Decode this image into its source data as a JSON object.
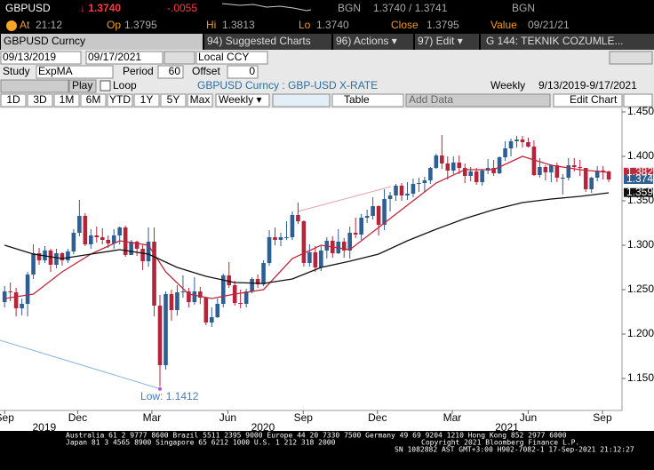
{
  "header": {
    "ticker": "GBPUSD",
    "last": "↓ 1.3740",
    "change": "-.0055",
    "bgn1": "BGN",
    "bid_ask": "1.3740 / 1.3741",
    "bgn2": "BGN",
    "at_label": "At",
    "at": "21:12",
    "op_label": "Op",
    "op": "1.3795",
    "hi_label": "Hi",
    "hi": "1.3813",
    "lo_label": "Lo",
    "lo": "1.3740",
    "close_label": "Close",
    "close": "1.3795",
    "value_label": "Value",
    "value": "09/21/21"
  },
  "toolbar": {
    "security": "GBPUSD Curncy",
    "suggested": "94) Suggested Charts",
    "actions": "96) Actions ▾",
    "edit": "97) Edit ▾",
    "page": "G 144: TEKNIK COZUMLE...",
    "start": "09/13/2019",
    "end": "09/17/2021",
    "currency": "Local CCY",
    "study_label": "Study",
    "study": "ExpMA",
    "period_label": "Period",
    "period": "60",
    "offset_label": "Offset",
    "offset": "0",
    "play": "Play",
    "loop": "Loop",
    "description": "GBPUSD Curncy : GBP-USD X-RATE",
    "frequency": "Weekly",
    "range": "9/13/2019-9/17/2021",
    "periods": [
      "1D",
      "3D",
      "1M",
      "6M",
      "YTD",
      "1Y",
      "5Y",
      "Max"
    ],
    "frequency_menu": "Weekly ▾",
    "table": "Table",
    "add_data": "Add Data",
    "edit_chart": "Edit Chart"
  },
  "chart_data": {
    "type": "candlestick",
    "up_color": "#2e5f93",
    "down_color": "#b5243a",
    "open": [
      1.236,
      1.248,
      1.247,
      1.229,
      1.234,
      1.267,
      1.291,
      1.283,
      1.294,
      1.278,
      1.291,
      1.283,
      1.293,
      1.314,
      1.333,
      1.301,
      1.311,
      1.309,
      1.306,
      1.302,
      1.311,
      1.32,
      1.289,
      1.304,
      1.296,
      1.282,
      1.304,
      1.232,
      1.165,
      1.245,
      1.227,
      1.247,
      1.248,
      1.236,
      1.248,
      1.241,
      1.213,
      1.219,
      1.234,
      1.266,
      1.255,
      1.235,
      1.234,
      1.248,
      1.262,
      1.256,
      1.28,
      1.309,
      1.306,
      1.309,
      1.309,
      1.334,
      1.327,
      1.28,
      1.292,
      1.275,
      1.294,
      1.305,
      1.291,
      1.304,
      1.294,
      1.314,
      1.312,
      1.331,
      1.333,
      1.344,
      1.323,
      1.352,
      1.356,
      1.367,
      1.356,
      1.358,
      1.369,
      1.37,
      1.373,
      1.387,
      1.401,
      1.392,
      1.384,
      1.393,
      1.387,
      1.378,
      1.383,
      1.371,
      1.384,
      1.387,
      1.381,
      1.399,
      1.409,
      1.417,
      1.419,
      1.416,
      1.411,
      1.379,
      1.388,
      1.382,
      1.39,
      1.376,
      1.376,
      1.39,
      1.388,
      1.387,
      1.363,
      1.376,
      1.384,
      1.383
    ],
    "high": [
      1.254,
      1.258,
      1.252,
      1.24,
      1.27,
      1.301,
      1.297,
      1.299,
      1.296,
      1.296,
      1.292,
      1.296,
      1.318,
      1.351,
      1.336,
      1.318,
      1.321,
      1.319,
      1.311,
      1.318,
      1.321,
      1.322,
      1.306,
      1.305,
      1.3,
      1.32,
      1.32,
      1.244,
      1.248,
      1.25,
      1.255,
      1.266,
      1.252,
      1.264,
      1.253,
      1.241,
      1.23,
      1.24,
      1.268,
      1.281,
      1.26,
      1.25,
      1.251,
      1.264,
      1.267,
      1.283,
      1.317,
      1.32,
      1.314,
      1.327,
      1.338,
      1.348,
      1.328,
      1.301,
      1.299,
      1.299,
      1.309,
      1.31,
      1.318,
      1.308,
      1.321,
      1.331,
      1.335,
      1.34,
      1.354,
      1.345,
      1.363,
      1.36,
      1.369,
      1.37,
      1.371,
      1.375,
      1.376,
      1.377,
      1.388,
      1.403,
      1.424,
      1.4,
      1.4,
      1.401,
      1.392,
      1.388,
      1.387,
      1.386,
      1.397,
      1.396,
      1.4,
      1.417,
      1.42,
      1.423,
      1.423,
      1.421,
      1.418,
      1.398,
      1.39,
      1.391,
      1.393,
      1.38,
      1.398,
      1.398,
      1.396,
      1.387,
      1.377,
      1.389,
      1.389,
      1.384
    ],
    "low": [
      1.23,
      1.237,
      1.22,
      1.221,
      1.22,
      1.262,
      1.278,
      1.28,
      1.27,
      1.274,
      1.277,
      1.28,
      1.29,
      1.31,
      1.299,
      1.296,
      1.303,
      1.301,
      1.297,
      1.296,
      1.301,
      1.287,
      1.289,
      1.288,
      1.272,
      1.276,
      1.22,
      1.1412,
      1.16,
      1.215,
      1.221,
      1.241,
      1.23,
      1.233,
      1.234,
      1.21,
      1.208,
      1.218,
      1.23,
      1.252,
      1.232,
      1.229,
      1.23,
      1.246,
      1.252,
      1.254,
      1.277,
      1.3,
      1.299,
      1.306,
      1.306,
      1.324,
      1.276,
      1.276,
      1.27,
      1.271,
      1.285,
      1.286,
      1.29,
      1.286,
      1.285,
      1.308,
      1.306,
      1.325,
      1.329,
      1.311,
      1.317,
      1.338,
      1.35,
      1.35,
      1.351,
      1.354,
      1.36,
      1.36,
      1.369,
      1.386,
      1.386,
      1.374,
      1.38,
      1.38,
      1.37,
      1.372,
      1.368,
      1.367,
      1.38,
      1.378,
      1.38,
      1.395,
      1.4,
      1.41,
      1.41,
      1.41,
      1.378,
      1.376,
      1.373,
      1.371,
      1.371,
      1.357,
      1.373,
      1.383,
      1.378,
      1.36,
      1.359,
      1.372,
      1.374,
      1.371
    ],
    "close": [
      1.248,
      1.247,
      1.229,
      1.234,
      1.267,
      1.291,
      1.283,
      1.294,
      1.278,
      1.291,
      1.283,
      1.293,
      1.314,
      1.333,
      1.301,
      1.311,
      1.309,
      1.306,
      1.302,
      1.311,
      1.32,
      1.289,
      1.304,
      1.296,
      1.282,
      1.304,
      1.232,
      1.165,
      1.245,
      1.227,
      1.247,
      1.248,
      1.236,
      1.248,
      1.241,
      1.213,
      1.219,
      1.234,
      1.266,
      1.255,
      1.235,
      1.234,
      1.248,
      1.262,
      1.256,
      1.28,
      1.309,
      1.306,
      1.309,
      1.309,
      1.334,
      1.327,
      1.28,
      1.292,
      1.275,
      1.294,
      1.305,
      1.291,
      1.304,
      1.294,
      1.314,
      1.312,
      1.331,
      1.333,
      1.344,
      1.323,
      1.352,
      1.356,
      1.367,
      1.356,
      1.358,
      1.369,
      1.37,
      1.373,
      1.387,
      1.401,
      1.392,
      1.384,
      1.393,
      1.387,
      1.378,
      1.383,
      1.371,
      1.384,
      1.387,
      1.381,
      1.399,
      1.409,
      1.417,
      1.419,
      1.416,
      1.411,
      1.379,
      1.388,
      1.382,
      1.39,
      1.376,
      1.376,
      1.39,
      1.388,
      1.387,
      1.363,
      1.376,
      1.384,
      1.383,
      1.374
    ],
    "xlim": [
      -0.8,
      107.3
    ],
    "ylim": [
      1.114,
      1.454
    ],
    "yticks": [
      {
        "value": 1.45,
        "label": "1.4500"
      },
      {
        "value": 1.4,
        "label": "1.4000"
      },
      {
        "value": 1.35,
        "label": "1.3500"
      },
      {
        "value": 1.3,
        "label": "1.3000"
      },
      {
        "value": 1.25,
        "label": "1.2500"
      },
      {
        "value": 1.2,
        "label": "1.2000"
      },
      {
        "value": 1.15,
        "label": "1.1500"
      }
    ],
    "xticks": [
      {
        "value": 0,
        "label": "Sep"
      },
      {
        "value": 12.7,
        "label": "Dec"
      },
      {
        "value": 25.6,
        "label": "Mar"
      },
      {
        "value": 38.8,
        "label": "Jun"
      },
      {
        "value": 51.9,
        "label": "Sep"
      },
      {
        "value": 64.8,
        "label": "Dec"
      },
      {
        "value": 77.8,
        "label": "Mar"
      },
      {
        "value": 91,
        "label": "Jun"
      },
      {
        "value": 103.9,
        "label": "Sep"
      }
    ],
    "year_labels": [
      {
        "value": 6.9,
        "label": "2019"
      },
      {
        "value": 44.9,
        "label": "2020"
      },
      {
        "value": 87.3,
        "label": "2021"
      }
    ],
    "studies": [
      {
        "color": "#c0283a",
        "x": [
          0,
          5,
          10,
          15,
          20,
          25,
          28,
          32,
          36,
          40,
          45,
          50,
          55,
          60,
          65,
          70,
          75,
          80,
          85,
          90,
          95,
          100,
          105
        ],
        "values": [
          1.24,
          1.245,
          1.27,
          1.29,
          1.305,
          1.3,
          1.27,
          1.245,
          1.24,
          1.245,
          1.25,
          1.285,
          1.3,
          1.295,
          1.32,
          1.345,
          1.37,
          1.385,
          1.385,
          1.4,
          1.39,
          1.385,
          1.382
        ]
      },
      {
        "color": "#111111",
        "x": [
          0,
          5,
          10,
          15,
          20,
          25,
          30,
          35,
          40,
          45,
          50,
          55,
          60,
          65,
          70,
          75,
          80,
          85,
          90,
          95,
          100,
          105
        ],
        "values": [
          1.3,
          1.29,
          1.285,
          1.29,
          1.295,
          1.29,
          1.275,
          1.265,
          1.258,
          1.257,
          1.262,
          1.275,
          1.282,
          1.29,
          1.305,
          1.318,
          1.33,
          1.34,
          1.348,
          1.352,
          1.355,
          1.359
        ]
      }
    ],
    "price_tags": [
      {
        "value": 1.3822,
        "color": "#c0283a"
      },
      {
        "value": 1.374,
        "color": "#2e5f93"
      },
      {
        "value": 1.3593,
        "color": "#111111"
      }
    ],
    "annotation": "Low: 1.1412"
  },
  "footer": {
    "line1": "Australia 61 2 9777 8600 Brazil 5511 2395 9000 Europe 44 20 7330 7500 Germany 49 69 9204 1210 Hong Kong 852 2977 6000",
    "line2": "Japan 81 3 4565 8900     Singapore 65 6212 1000     U.S. 1 212 318 2000",
    "copyright": "Copyright 2021 Bloomberg Finance L.P.",
    "line3": "SN 1082882 AST  GMT+3:00 H902-7082-1 17-Sep-2021 21:12:27"
  }
}
